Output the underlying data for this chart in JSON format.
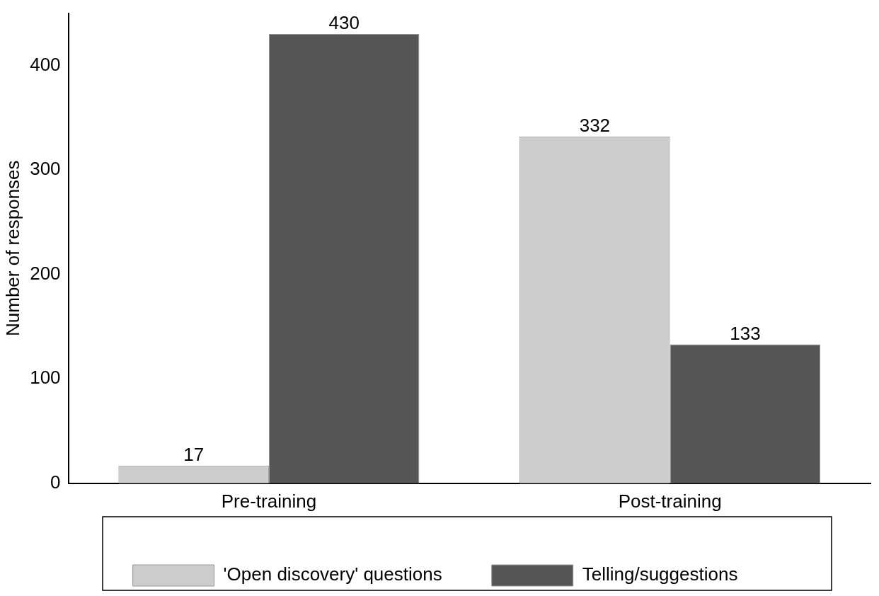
{
  "chart_data": {
    "type": "bar",
    "ylabel": "Number of responses",
    "categories": [
      "Pre-training",
      "Post-training"
    ],
    "series": [
      {
        "name": "'Open discovery' questions",
        "color": "#cccccc",
        "values": [
          17,
          332
        ]
      },
      {
        "name": "Telling/suggestions",
        "color": "#555555",
        "values": [
          430,
          133
        ]
      }
    ],
    "ylim": [
      0,
      450
    ],
    "yticks": [
      0,
      100,
      200,
      300,
      400
    ],
    "grid": false,
    "legend": "bottom",
    "data_labels": true
  }
}
